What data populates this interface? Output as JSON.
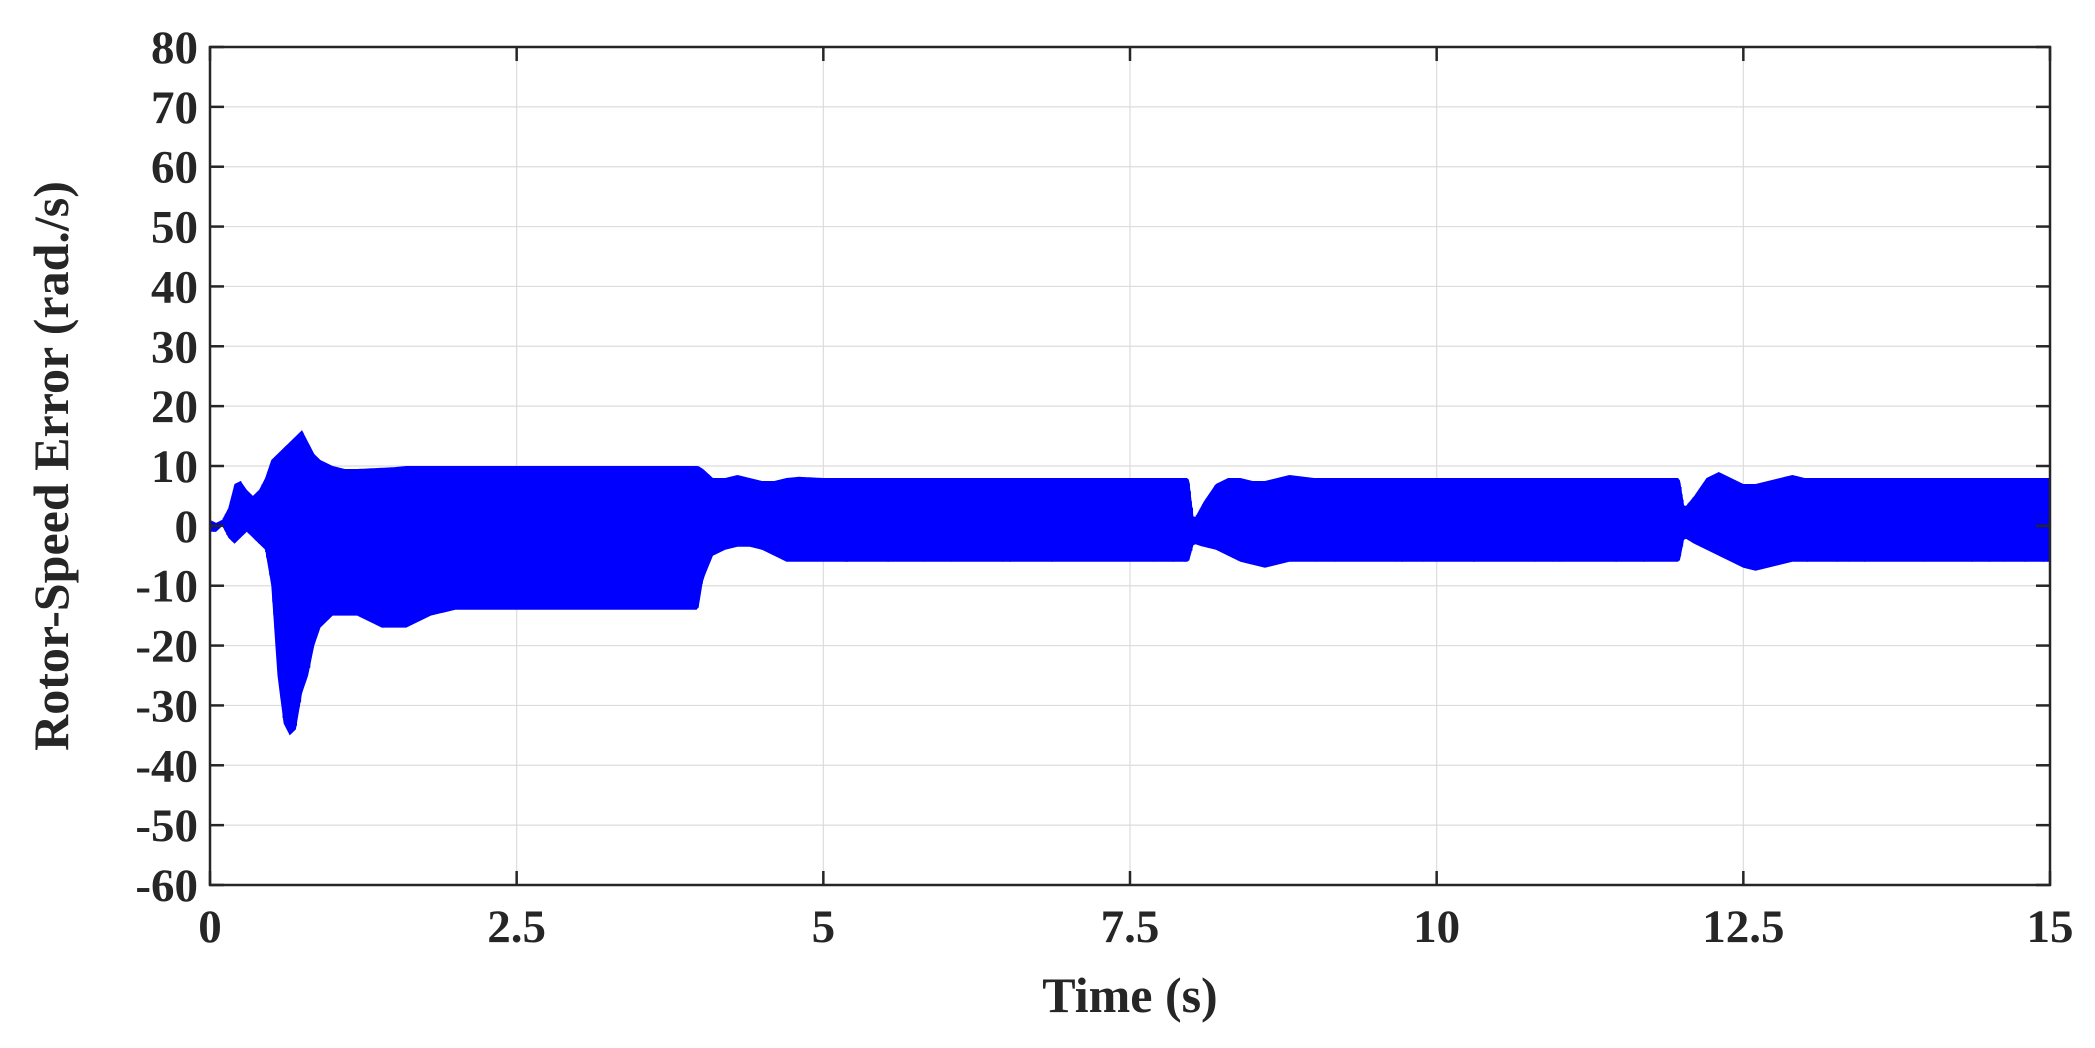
{
  "chart_data": {
    "type": "line",
    "title": "",
    "xlabel": "Time (s)",
    "ylabel": "Rotor-Speed Error (rad./s)",
    "xlim": [
      0,
      15
    ],
    "ylim": [
      -60,
      80
    ],
    "x_ticks": [
      "0",
      "2.5",
      "5",
      "7.5",
      "10",
      "12.5",
      "15"
    ],
    "y_ticks": [
      "80",
      "70",
      "60",
      "50",
      "40",
      "30",
      "20",
      "10",
      "0",
      "-10",
      "-20",
      "-30",
      "-40",
      "-50",
      "-60"
    ],
    "grid": true,
    "legend": "none",
    "series": [
      {
        "color": "#0000ff",
        "description": "high-frequency oscillation; upper and lower envelope in rad./s",
        "x": [
          0,
          0.05,
          0.1,
          0.15,
          0.2,
          0.25,
          0.3,
          0.35,
          0.4,
          0.45,
          0.5,
          0.55,
          0.6,
          0.65,
          0.7,
          0.75,
          0.8,
          0.85,
          0.9,
          0.95,
          1.0,
          1.1,
          1.2,
          1.3,
          1.4,
          1.5,
          1.6,
          1.7,
          1.8,
          1.9,
          2.0,
          2.2,
          2.4,
          2.6,
          2.8,
          3.0,
          3.2,
          3.4,
          3.6,
          3.8,
          3.98,
          4.02,
          4.1,
          4.2,
          4.3,
          4.4,
          4.5,
          4.6,
          4.7,
          4.8,
          5.0,
          5.5,
          6.0,
          6.5,
          7.0,
          7.5,
          7.98,
          8.02,
          8.1,
          8.2,
          8.3,
          8.4,
          8.5,
          8.6,
          8.7,
          8.8,
          9.0,
          9.5,
          10.0,
          10.5,
          11.0,
          11.5,
          11.98,
          12.02,
          12.1,
          12.2,
          12.3,
          12.4,
          12.5,
          12.6,
          12.7,
          12.8,
          12.9,
          13.0,
          13.5,
          14.0,
          14.5,
          15.0
        ],
        "upper": [
          1,
          0.5,
          1,
          3,
          7,
          7.5,
          6,
          5,
          6,
          8,
          11,
          12,
          13,
          14,
          15,
          16,
          14,
          12,
          11,
          10.5,
          10,
          9.5,
          9.5,
          9.6,
          9.7,
          9.8,
          10,
          10,
          10,
          10,
          10,
          10,
          10,
          10,
          10,
          10,
          10,
          10,
          10,
          10,
          10,
          9.5,
          8,
          8,
          8.5,
          8,
          7.5,
          7.5,
          8,
          8.2,
          8,
          8,
          8,
          8,
          8,
          8,
          8,
          1,
          4,
          7,
          8,
          8,
          7.5,
          7.5,
          8,
          8.5,
          8,
          8,
          8,
          8,
          8,
          8,
          8,
          3,
          5,
          8,
          9,
          8,
          7,
          7,
          7.5,
          8,
          8.5,
          8,
          8,
          8,
          8,
          8
        ],
        "lower": [
          -1,
          -1,
          0,
          -2,
          -3,
          -2,
          -1,
          -2,
          -3,
          -4,
          -10,
          -25,
          -33,
          -35,
          -34,
          -28,
          -25,
          -20,
          -17,
          -16,
          -15,
          -15,
          -15,
          -16,
          -17,
          -17,
          -17,
          -16,
          -15,
          -14.5,
          -14,
          -14,
          -14,
          -14,
          -14,
          -14,
          -14,
          -14,
          -14,
          -14,
          -14,
          -9,
          -5,
          -4,
          -3.5,
          -3.5,
          -4,
          -5,
          -6,
          -6,
          -6,
          -6,
          -6,
          -6,
          -6,
          -6,
          -6,
          -3,
          -3.5,
          -4,
          -5,
          -6,
          -6.5,
          -7,
          -6.5,
          -6,
          -6,
          -6,
          -6,
          -6,
          -6,
          -6,
          -6,
          -2,
          -3,
          -4,
          -5,
          -6,
          -7,
          -7.5,
          -7,
          -6.5,
          -6,
          -6,
          -6,
          -6,
          -6,
          -6
        ]
      }
    ]
  }
}
